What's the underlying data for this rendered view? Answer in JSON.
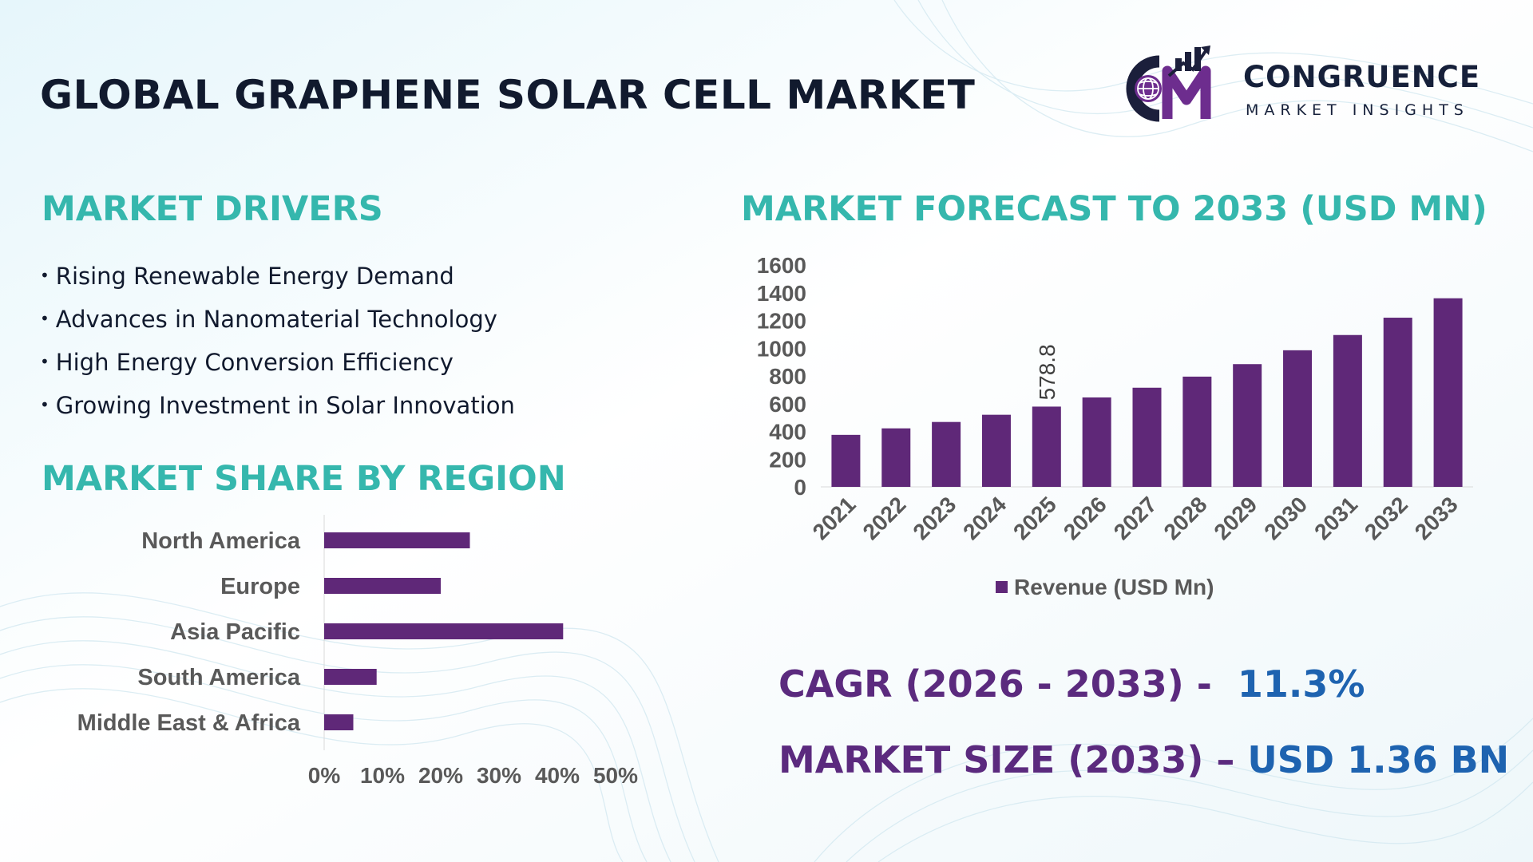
{
  "title": "GLOBAL GRAPHENE SOLAR CELL MARKET",
  "logo": {
    "name": "CONGRUENCE",
    "subtitle": "MARKET INSIGHTS"
  },
  "drivers": {
    "heading": "MARKET DRIVERS",
    "items": [
      "Rising Renewable Energy Demand",
      "Advances in Nanomaterial Technology",
      "High Energy Conversion Efficiency",
      "Growing Investment in Solar Innovation"
    ]
  },
  "region": {
    "heading": "MARKET SHARE BY REGION"
  },
  "forecast": {
    "heading": "MARKET FORECAST TO 2033 (USD MN)"
  },
  "stats": {
    "cagr_label": "CAGR (2026 - 2033) -",
    "cagr_value": "11.3%",
    "size_label": "MARKET SIZE (2033) –",
    "size_value": "USD 1.36 BN"
  },
  "colors": {
    "bar": "#5f2878",
    "accent_teal": "#35b7ad",
    "stat_label": "#5b2a7e",
    "stat_value": "#1e63b0"
  },
  "chart_data": [
    {
      "type": "bar",
      "orientation": "horizontal",
      "categories": [
        "North America",
        "Europe",
        "Asia Pacific",
        "South America",
        "Middle East & Africa"
      ],
      "values": [
        25,
        20,
        41,
        9,
        5
      ],
      "unit": "%",
      "xlim": [
        0,
        50
      ],
      "xticks": [
        "0%",
        "10%",
        "20%",
        "30%",
        "40%",
        "50%"
      ],
      "grid": false
    },
    {
      "type": "bar",
      "categories": [
        "2021",
        "2022",
        "2023",
        "2024",
        "2025",
        "2026",
        "2027",
        "2028",
        "2029",
        "2030",
        "2031",
        "2032",
        "2033"
      ],
      "series": [
        {
          "name": "Revenue (USD Mn)",
          "values": [
            375,
            422,
            468,
            520,
            578.8,
            645,
            715,
            795,
            885,
            985,
            1095,
            1220,
            1360
          ]
        }
      ],
      "data_labels": [
        {
          "category": "2025",
          "text": "578.8"
        }
      ],
      "ylim": [
        0,
        1600
      ],
      "yticks": [
        "0",
        "200",
        "400",
        "600",
        "800",
        "1000",
        "1200",
        "1400",
        "1600"
      ],
      "legend": "bottom",
      "grid": false
    }
  ]
}
